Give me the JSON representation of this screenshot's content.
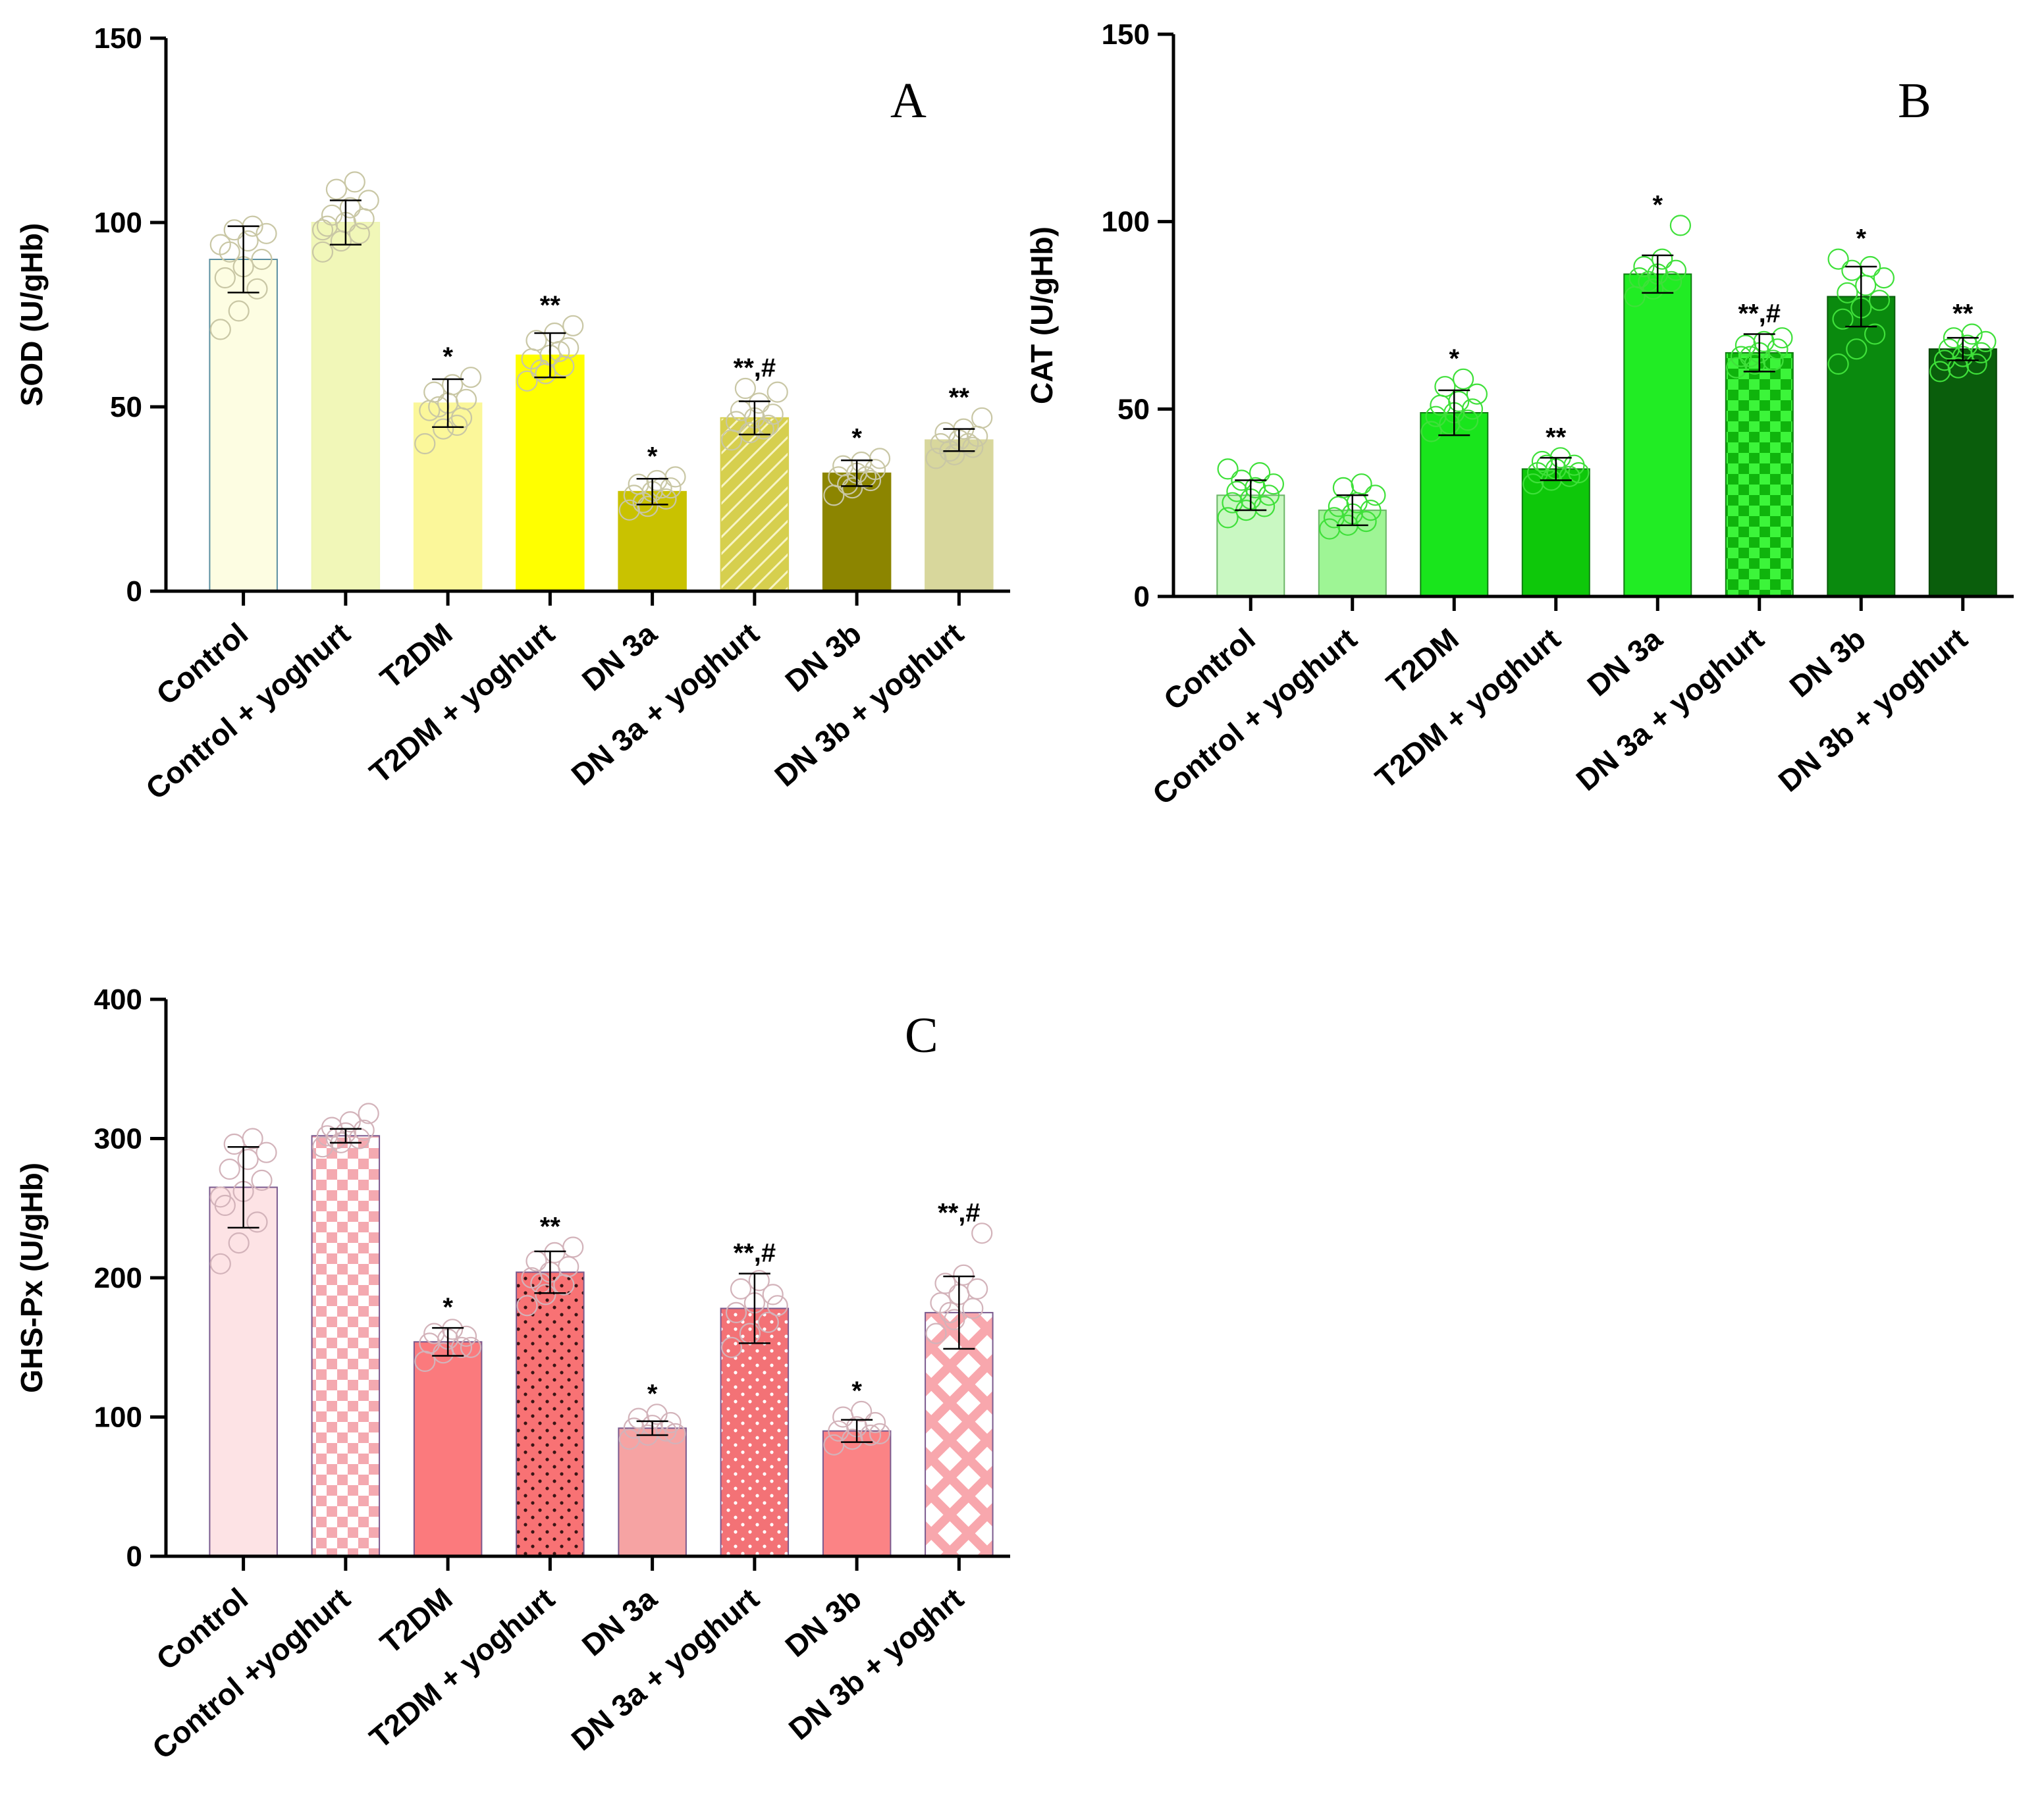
{
  "figure_title": "",
  "chart_data": [
    {
      "panel": "A",
      "type": "bar",
      "title": "",
      "xlabel": "",
      "ylabel": "SOD (U/gHb)",
      "ylim": [
        0,
        150
      ],
      "yticks": [
        0,
        50,
        100,
        150
      ],
      "categories": [
        "Control",
        "Control + yoghurt",
        "T2DM",
        "T2DM + yoghurt",
        "DN 3a",
        "DN 3a + yoghurt",
        "DN 3b",
        "DN 3b + yoghurt"
      ],
      "values": [
        90,
        100,
        51,
        64,
        27,
        47,
        32,
        41
      ],
      "errors": [
        9,
        6,
        6.5,
        6,
        3.5,
        4.5,
        3.5,
        3
      ],
      "annotations": [
        "",
        "",
        "*",
        "**",
        "*",
        "**,#",
        "*",
        "**"
      ],
      "fills": [
        "#fdfde2",
        "#f1f7b8",
        "#fbf79a",
        "#ffff00",
        "#c9c200",
        "#d6cf4e",
        "#8c8500",
        "#d8d79c"
      ],
      "patterns": [
        "none",
        "none",
        "none",
        "none",
        "none",
        "diagonal",
        "none",
        "none"
      ],
      "outline_colors": [
        "#5b8fa0",
        "#eef5b6",
        "#fbf79a",
        "#ffff00",
        "#c9c200",
        "#d6cf4e",
        "#8c8500",
        "#d8d79c"
      ],
      "point_color": "#c9c7a5",
      "points": [
        [
          71,
          76,
          82,
          85,
          88,
          90,
          92,
          95,
          97,
          98,
          99,
          94
        ],
        [
          92,
          95,
          97,
          99,
          100,
          101,
          102,
          104,
          106,
          109,
          111,
          98
        ],
        [
          40,
          44,
          47,
          49,
          51,
          52,
          54,
          56,
          58,
          50,
          45
        ],
        [
          57,
          59,
          61,
          63,
          64,
          66,
          68,
          70,
          72,
          60,
          65
        ],
        [
          22,
          23,
          25,
          26,
          27,
          28,
          29,
          30,
          31,
          24,
          28
        ],
        [
          41,
          43,
          45,
          46,
          47,
          48,
          49,
          51,
          54,
          55,
          44
        ],
        [
          26,
          28,
          30,
          31,
          32,
          33,
          34,
          35,
          36,
          29,
          31
        ],
        [
          36,
          37,
          39,
          40,
          41,
          42,
          43,
          44,
          47,
          38,
          40
        ]
      ],
      "panel_label": "A"
    },
    {
      "panel": "B",
      "type": "bar",
      "title": "",
      "xlabel": "",
      "ylabel": "CAT (U/gHb)",
      "ylim": [
        0,
        150
      ],
      "yticks": [
        0,
        50,
        100,
        150
      ],
      "categories": [
        "Control",
        "Control + yoghurt",
        "T2DM",
        "T2DM + yoghurt",
        "DN 3a",
        "DN 3a + yoghurt",
        "DN 3b",
        "DN 3b + yoghurt"
      ],
      "values": [
        27,
        23,
        49,
        34,
        86,
        65,
        80,
        66
      ],
      "errors": [
        4,
        4,
        6,
        3,
        5,
        5,
        8,
        3
      ],
      "annotations": [
        "",
        "",
        "*",
        "**",
        "*",
        "**,#",
        "*",
        "**"
      ],
      "fills": [
        "#c9f8c2",
        "#9ef595",
        "#19e51c",
        "#0ec80a",
        "#21ec24",
        "#10c40c",
        "#0a8a0e",
        "#0a5e0c"
      ],
      "patterns": [
        "none",
        "none",
        "none",
        "none",
        "none",
        "checker",
        "none",
        "none"
      ],
      "outline_colors": [
        "#6bb567",
        "#6bb567",
        "#0f7d11",
        "#0f7d11",
        "#0f7d11",
        "#0f7d11",
        "#0a5e0c",
        "#064508"
      ],
      "point_color": "#3fe03a",
      "points": [
        [
          21,
          23,
          24,
          25,
          26,
          27,
          28,
          29,
          30,
          31,
          33,
          34
        ],
        [
          18,
          19,
          20,
          21,
          22,
          23,
          24,
          25,
          27,
          29,
          30
        ],
        [
          44,
          46,
          47,
          48,
          49,
          50,
          51,
          52,
          54,
          56,
          58
        ],
        [
          30,
          31,
          32,
          33,
          34,
          35,
          36,
          37,
          33,
          35
        ],
        [
          80,
          82,
          84,
          85,
          86,
          87,
          88,
          90,
          99,
          84
        ],
        [
          61,
          62,
          63,
          64,
          65,
          66,
          67,
          68,
          69,
          64
        ],
        [
          62,
          66,
          70,
          74,
          77,
          79,
          81,
          83,
          85,
          87,
          88,
          90
        ],
        [
          60,
          61,
          62,
          63,
          64,
          65,
          66,
          67,
          68,
          69,
          70
        ]
      ],
      "panel_label": "B"
    },
    {
      "panel": "C",
      "type": "bar",
      "title": "",
      "xlabel": "",
      "ylabel": "GHS-Px (U/gHb)",
      "ylim": [
        0,
        400
      ],
      "yticks": [
        0,
        100,
        200,
        300,
        400
      ],
      "categories": [
        "Control",
        "Control +yoghurt",
        "T2DM",
        "T2DM + yoghurt",
        "DN 3a",
        "DN 3a + yoghurt",
        "DN 3b",
        "DN 3b + yoghrt"
      ],
      "values": [
        265,
        302,
        154,
        204,
        92,
        178,
        90,
        175
      ],
      "errors": [
        29,
        5,
        10,
        15,
        5,
        25,
        8,
        26
      ],
      "annotations": [
        "",
        "",
        "*",
        "**",
        "*",
        "**,#",
        "*",
        "**,#"
      ],
      "fills": [
        "#fde3e5",
        "#f6a9b0",
        "#fb7a7d",
        "#f87274",
        "#f6a3a3",
        "#f37276",
        "#fb8385",
        "#f8a7ad"
      ],
      "patterns": [
        "none",
        "checker-light",
        "none",
        "dots",
        "none",
        "dots-light",
        "none",
        "crosshatch"
      ],
      "outline_colors": [
        "#7a5a8e",
        "#7a5a8e",
        "#7a5a8e",
        "#7a5a8e",
        "#7a5a8e",
        "#7a5a8e",
        "#7a5a8e",
        "#7a5a8e"
      ],
      "point_color": "#d3b3ba",
      "points": [
        [
          210,
          225,
          240,
          252,
          262,
          270,
          278,
          285,
          290,
          296,
          300,
          258
        ],
        [
          294,
          297,
          300,
          302,
          304,
          306,
          308,
          312,
          318,
          300
        ],
        [
          140,
          146,
          150,
          153,
          156,
          158,
          160,
          163,
          150
        ],
        [
          180,
          188,
          195,
          200,
          204,
          208,
          212,
          218,
          222,
          196
        ],
        [
          84,
          87,
          90,
          92,
          94,
          96,
          99,
          102,
          88
        ],
        [
          150,
          160,
          168,
          175,
          182,
          188,
          192,
          198,
          180
        ],
        [
          80,
          84,
          87,
          90,
          93,
          96,
          100,
          104,
          88
        ],
        [
          160,
          170,
          178,
          182,
          188,
          192,
          196,
          202,
          232,
          175
        ]
      ],
      "panel_label": "C"
    }
  ]
}
